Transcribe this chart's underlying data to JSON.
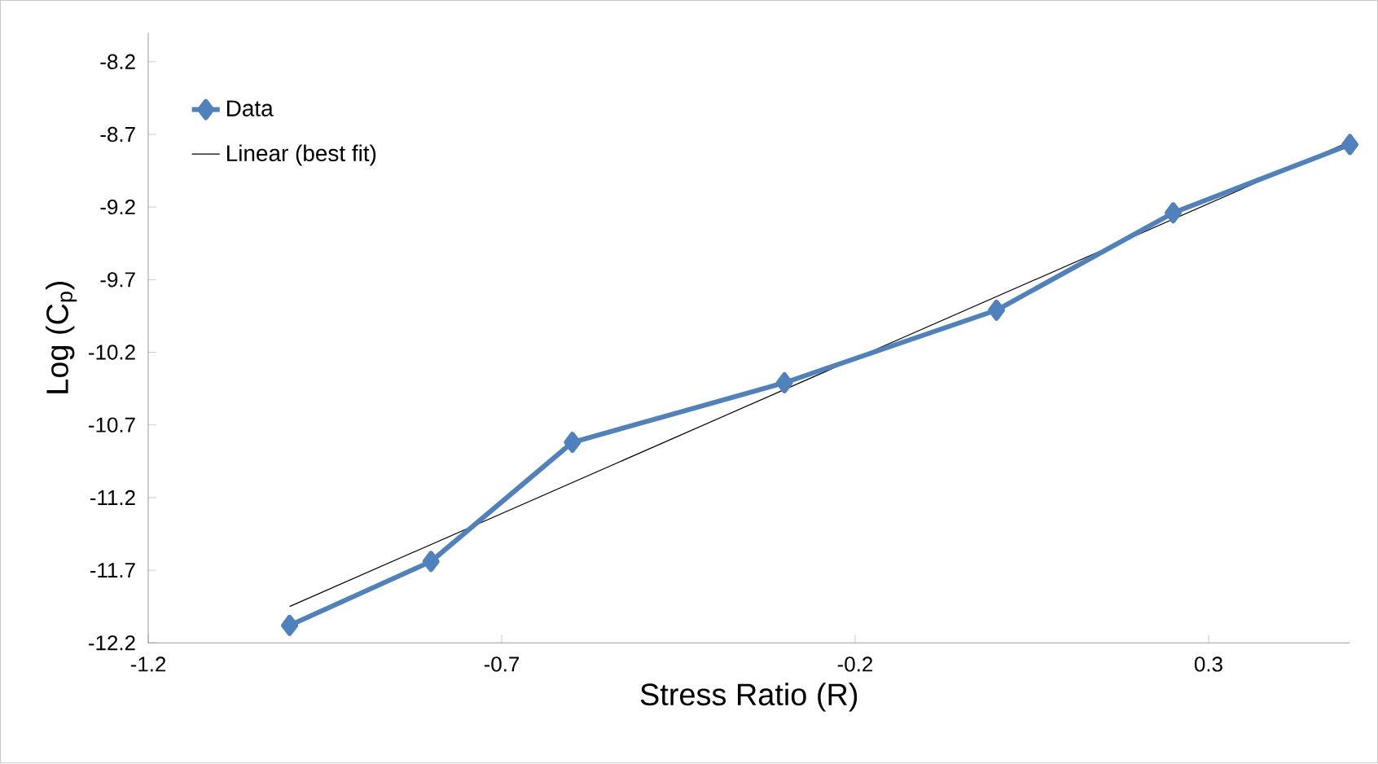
{
  "chart_data": {
    "type": "line",
    "xlabel": "Stress Ratio (R)",
    "ylabel": "Log (C$_{p}$)",
    "xlim": [
      -1.2,
      0.5
    ],
    "ylim": [
      -12.2,
      -8.0
    ],
    "xticks": [
      -1.2,
      -0.7,
      -0.2,
      0.3
    ],
    "yticks": [
      -12.2,
      -11.7,
      -11.2,
      -10.7,
      -10.2,
      -9.7,
      -9.2,
      -8.7,
      -8.2
    ],
    "legend": "top left",
    "grid": false,
    "series": [
      {
        "name": "Data",
        "color": "#4f81bd",
        "marker": "diamond",
        "line_style": "solid",
        "x": [
          -1.0,
          -0.8,
          -0.6,
          -0.3,
          0.0,
          0.25,
          0.5
        ],
        "values": [
          -12.08,
          -11.64,
          -10.82,
          -10.41,
          -9.91,
          -9.24,
          -8.77
        ]
      },
      {
        "name": "Linear (best fit)",
        "color": "#000000",
        "marker": "none",
        "line_style": "solid",
        "x": [
          -1.0,
          0.5
        ],
        "values": [
          -11.95,
          -8.75
        ]
      }
    ]
  }
}
